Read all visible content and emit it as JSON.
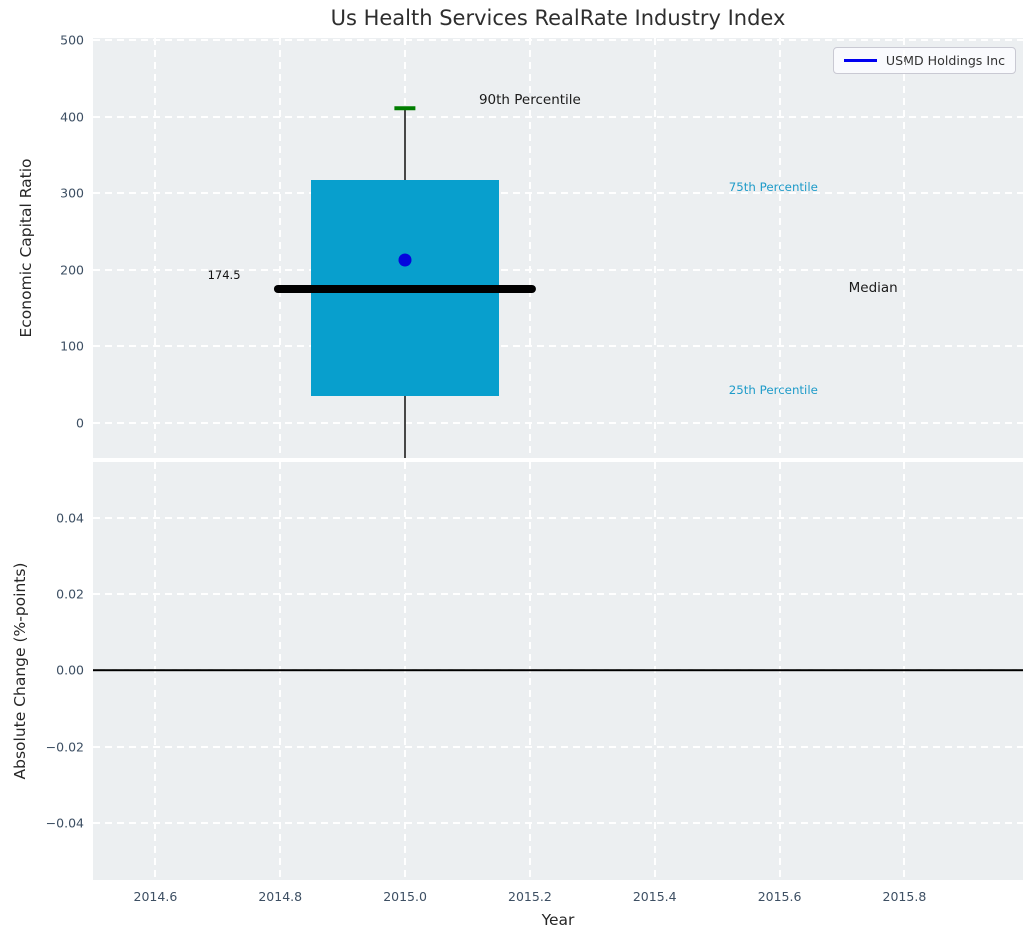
{
  "title": "Us Health Services RealRate Industry Index",
  "colors": {
    "plot_background": "#eceff1",
    "grid": "#ffffff",
    "box_fill": "#089fcd",
    "median_line": "#000000",
    "whisker": "#474747",
    "whisker_cap": "#007d00",
    "company_dot": "#0505dd",
    "legend_line": "#0000f0",
    "percentile_text": "#1e9bc9",
    "tick_text": "#3d4f63",
    "zero_line": "#000000"
  },
  "legend": {
    "label": "USMD Holdings Inc"
  },
  "chart_data": [
    {
      "type": "box",
      "panel": "economic-capital-ratio",
      "title": "Us Health Services RealRate Industry Index",
      "ylabel": "Economic Capital Ratio",
      "ylim": [
        -46,
        503
      ],
      "xlim": [
        2014.5,
        2015.99
      ],
      "grid": true,
      "legend_position": "upper right",
      "legend_entries": [
        {
          "label": "USMD Holdings Inc",
          "color": "#0000f0",
          "style": "line"
        }
      ],
      "yticks": [
        {
          "v": 500,
          "label": "500"
        },
        {
          "v": 400,
          "label": "400"
        },
        {
          "v": 300,
          "label": "300"
        },
        {
          "v": 200,
          "label": "200"
        },
        {
          "v": 100,
          "label": "100"
        },
        {
          "v": 0,
          "label": "0"
        }
      ],
      "xgrid_years": [
        2014.6,
        2014.8,
        2015.0,
        2015.2,
        2015.4,
        2015.6,
        2015.8
      ],
      "box": {
        "x": 2015.0,
        "p90": 411,
        "p75": 317,
        "median": 174.5,
        "p25": 35,
        "whisker_low": -46,
        "box_halfwidth": 0.15,
        "median_halfwidth": 0.21,
        "cap_halfwidth": 0.017
      },
      "company_point": {
        "name": "USMD Holdings Inc",
        "x": 2015.0,
        "y": 213
      },
      "annotations": [
        {
          "text": "90th Percentile",
          "x": 2015.2,
          "y": 422,
          "cls": "anno-dark"
        },
        {
          "text": "75th Percentile",
          "x": 2015.59,
          "y": 308,
          "cls": "anno-cyan"
        },
        {
          "text": "Median",
          "x": 2015.75,
          "y": 176,
          "cls": "anno-dark"
        },
        {
          "text": "25th Percentile",
          "x": 2015.59,
          "y": 43,
          "cls": "anno-cyan"
        },
        {
          "text": "174.5",
          "x": 2014.71,
          "y": 193,
          "cls": "anno-small-dark"
        }
      ]
    },
    {
      "type": "line",
      "panel": "absolute-change",
      "ylabel": "Absolute Change (%-points)",
      "xlabel": "Year",
      "ylim": [
        -0.0549,
        0.0546
      ],
      "xlim": [
        2014.5,
        2015.99
      ],
      "grid": true,
      "zero_line": 0.0,
      "series": [],
      "yticks": [
        {
          "v": 0.04,
          "label": "0.04"
        },
        {
          "v": 0.02,
          "label": "0.02"
        },
        {
          "v": 0.0,
          "label": "0.00"
        },
        {
          "v": -0.02,
          "label": "−0.02"
        },
        {
          "v": -0.04,
          "label": "−0.04"
        }
      ],
      "xticks": [
        {
          "v": 2014.6,
          "label": "2014.6"
        },
        {
          "v": 2014.8,
          "label": "2014.8"
        },
        {
          "v": 2015.0,
          "label": "2015.0"
        },
        {
          "v": 2015.2,
          "label": "2015.2"
        },
        {
          "v": 2015.4,
          "label": "2015.4"
        },
        {
          "v": 2015.6,
          "label": "2015.6"
        },
        {
          "v": 2015.8,
          "label": "2015.8"
        }
      ]
    }
  ]
}
